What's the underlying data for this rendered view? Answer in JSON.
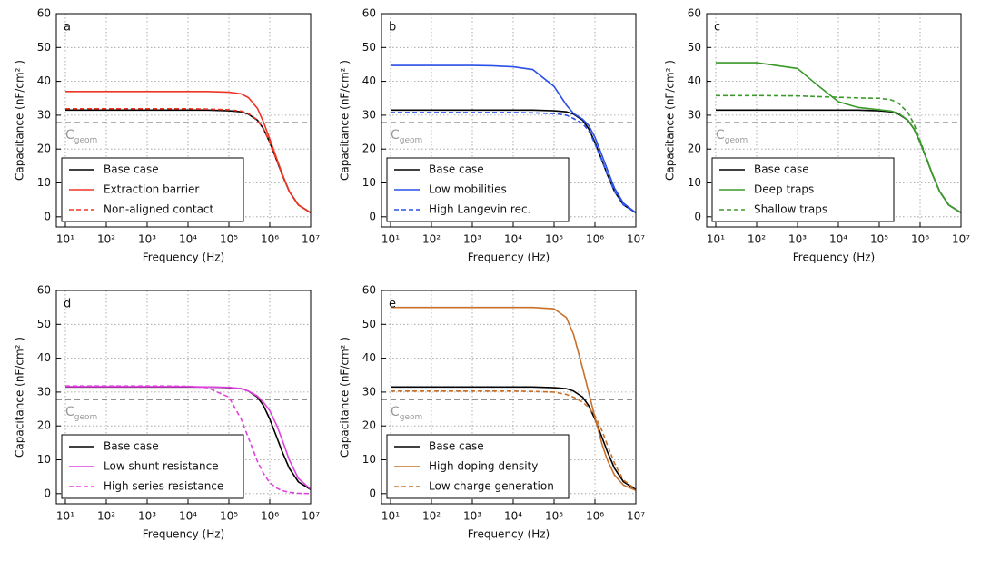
{
  "chart_data": [
    {
      "type": "line",
      "panel_label": "a",
      "xlabel": "Frequency (Hz)",
      "ylabel": "Capacitance (nF/cm² )",
      "log_x": true,
      "grid": true,
      "legend": "lower left",
      "x": [
        10,
        100,
        1000,
        3000,
        10000,
        30000,
        100000,
        200000,
        300000,
        500000,
        700000,
        1000000,
        1500000,
        2000000,
        3000000,
        5000000,
        10000000
      ],
      "xlim": [
        6,
        10000000
      ],
      "ylim": [
        -3,
        60
      ],
      "xticks": [
        {
          "value": 10,
          "label": "10¹"
        },
        {
          "value": 100,
          "label": "10²"
        },
        {
          "value": 1000,
          "label": "10³"
        },
        {
          "value": 10000,
          "label": "10⁴"
        },
        {
          "value": 100000,
          "label": "10⁵"
        },
        {
          "value": 1000000,
          "label": "10⁶"
        },
        {
          "value": 10000000,
          "label": "10⁷"
        }
      ],
      "yticks": [
        0,
        10,
        20,
        30,
        40,
        50,
        60
      ],
      "reference_line": {
        "value": 27.8,
        "color": "#808080"
      },
      "annotation": {
        "text": "C",
        "subscript": "geom"
      },
      "series": [
        {
          "name": "Base case",
          "color": "#000000",
          "dash": false,
          "values": [
            31.5,
            31.5,
            31.5,
            31.5,
            31.5,
            31.5,
            31.3,
            31,
            30.3,
            28.5,
            26,
            22,
            16.5,
            12.5,
            7.5,
            3.5,
            1.2
          ]
        },
        {
          "name": "Extraction barrier",
          "color": "#ee3524",
          "dash": false,
          "values": [
            37,
            37,
            37,
            37,
            37,
            37,
            36.8,
            36.3,
            35.2,
            32,
            28,
            23,
            17,
            12.8,
            7.5,
            3.5,
            1.2
          ]
        },
        {
          "name": "Non-aligned contact",
          "color": "#ee3524",
          "dash": true,
          "values": [
            31.9,
            31.9,
            31.9,
            31.9,
            31.9,
            31.8,
            31.6,
            31.2,
            30.5,
            28.6,
            26,
            22,
            16.5,
            12.5,
            7.5,
            3.5,
            1.2
          ]
        }
      ]
    },
    {
      "type": "line",
      "panel_label": "b",
      "xlabel": "Frequency (Hz)",
      "ylabel": "Capacitance (nF/cm² )",
      "log_x": true,
      "grid": true,
      "legend": "lower left",
      "x": [
        10,
        100,
        1000,
        3000,
        10000,
        30000,
        100000,
        200000,
        300000,
        500000,
        700000,
        1000000,
        1500000,
        2000000,
        3000000,
        5000000,
        10000000
      ],
      "xlim": [
        6,
        10000000
      ],
      "ylim": [
        -3,
        60
      ],
      "xticks": [
        {
          "value": 10,
          "label": "10¹"
        },
        {
          "value": 100,
          "label": "10²"
        },
        {
          "value": 1000,
          "label": "10³"
        },
        {
          "value": 10000,
          "label": "10⁴"
        },
        {
          "value": 100000,
          "label": "10⁵"
        },
        {
          "value": 1000000,
          "label": "10⁶"
        },
        {
          "value": 10000000,
          "label": "10⁷"
        }
      ],
      "yticks": [
        0,
        10,
        20,
        30,
        40,
        50,
        60
      ],
      "reference_line": {
        "value": 27.8,
        "color": "#808080"
      },
      "annotation": {
        "text": "C",
        "subscript": "geom"
      },
      "series": [
        {
          "name": "Base case",
          "color": "#000000",
          "dash": false,
          "values": [
            31.5,
            31.5,
            31.5,
            31.5,
            31.5,
            31.5,
            31.3,
            31,
            30.3,
            28.5,
            26,
            22,
            16.5,
            12.5,
            7.5,
            3.5,
            1.2
          ]
        },
        {
          "name": "Low mobilities",
          "color": "#2a50e8",
          "dash": false,
          "values": [
            44.7,
            44.7,
            44.7,
            44.6,
            44.3,
            43.5,
            38.5,
            33,
            30.5,
            28.8,
            27,
            23.5,
            18,
            14,
            8.5,
            4,
            1.2
          ]
        },
        {
          "name": "High Langevin rec.",
          "color": "#2a50e8",
          "dash": true,
          "values": [
            30.8,
            30.8,
            30.8,
            30.8,
            30.8,
            30.7,
            30.5,
            30,
            29,
            27.5,
            25.5,
            21.5,
            16.5,
            12.5,
            7.5,
            3.5,
            1.2
          ]
        }
      ]
    },
    {
      "type": "line",
      "panel_label": "c",
      "xlabel": "Frequency (Hz)",
      "ylabel": "Capacitance (nF/cm² )",
      "log_x": true,
      "grid": true,
      "legend": "lower left",
      "x": [
        10,
        100,
        1000,
        3000,
        10000,
        30000,
        100000,
        200000,
        300000,
        500000,
        700000,
        1000000,
        1500000,
        2000000,
        3000000,
        5000000,
        10000000
      ],
      "xlim": [
        6,
        10000000
      ],
      "ylim": [
        -3,
        60
      ],
      "xticks": [
        {
          "value": 10,
          "label": "10¹"
        },
        {
          "value": 100,
          "label": "10²"
        },
        {
          "value": 1000,
          "label": "10³"
        },
        {
          "value": 10000,
          "label": "10⁴"
        },
        {
          "value": 100000,
          "label": "10⁵"
        },
        {
          "value": 1000000,
          "label": "10⁶"
        },
        {
          "value": 10000000,
          "label": "10⁷"
        }
      ],
      "yticks": [
        0,
        10,
        20,
        30,
        40,
        50,
        60
      ],
      "reference_line": {
        "value": 27.8,
        "color": "#808080"
      },
      "annotation": {
        "text": "C",
        "subscript": "geom"
      },
      "series": [
        {
          "name": "Base case",
          "color": "#000000",
          "dash": false,
          "values": [
            31.5,
            31.5,
            31.5,
            31.5,
            31.5,
            31.5,
            31.3,
            31,
            30.3,
            28.5,
            26,
            22,
            16.5,
            12.5,
            7.5,
            3.5,
            1.2
          ]
        },
        {
          "name": "Deep traps",
          "color": "#3a9a2a",
          "dash": false,
          "values": [
            45.5,
            45.5,
            43.8,
            39,
            34,
            32.3,
            31.6,
            31.2,
            30.5,
            28.5,
            26,
            22,
            16.5,
            12.5,
            7.5,
            3.5,
            1.2
          ]
        },
        {
          "name": "Shallow traps",
          "color": "#3a9a2a",
          "dash": true,
          "values": [
            35.8,
            35.8,
            35.7,
            35.5,
            35.3,
            35.1,
            35,
            34.5,
            33.5,
            30.8,
            27.5,
            22.5,
            16.8,
            12.5,
            7.5,
            3.5,
            1.2
          ]
        }
      ]
    },
    {
      "type": "line",
      "panel_label": "d",
      "xlabel": "Frequency (Hz)",
      "ylabel": "Capacitance (nF/cm² )",
      "log_x": true,
      "grid": true,
      "legend": "lower left",
      "x": [
        10,
        100,
        1000,
        3000,
        10000,
        30000,
        100000,
        200000,
        300000,
        500000,
        700000,
        1000000,
        1500000,
        2000000,
        3000000,
        5000000,
        10000000
      ],
      "xlim": [
        6,
        10000000
      ],
      "ylim": [
        -3,
        60
      ],
      "xticks": [
        {
          "value": 10,
          "label": "10¹"
        },
        {
          "value": 100,
          "label": "10²"
        },
        {
          "value": 1000,
          "label": "10³"
        },
        {
          "value": 10000,
          "label": "10⁴"
        },
        {
          "value": 100000,
          "label": "10⁵"
        },
        {
          "value": 1000000,
          "label": "10⁶"
        },
        {
          "value": 10000000,
          "label": "10⁷"
        }
      ],
      "yticks": [
        0,
        10,
        20,
        30,
        40,
        50,
        60
      ],
      "reference_line": {
        "value": 27.8,
        "color": "#808080"
      },
      "annotation": {
        "text": "C",
        "subscript": "geom"
      },
      "series": [
        {
          "name": "Base case",
          "color": "#000000",
          "dash": false,
          "values": [
            31.5,
            31.5,
            31.5,
            31.5,
            31.5,
            31.5,
            31.3,
            31,
            30.3,
            28.5,
            26,
            22,
            16.5,
            12.5,
            7.5,
            3.5,
            1.2
          ]
        },
        {
          "name": "Low shunt resistance",
          "color": "#e040e0",
          "dash": false,
          "values": [
            31.6,
            31.6,
            31.6,
            31.6,
            31.6,
            31.5,
            31.4,
            31,
            30.3,
            28.8,
            27,
            24.5,
            20,
            16,
            10,
            4.5,
            1.3
          ]
        },
        {
          "name": "High series resistance",
          "color": "#e040e0",
          "dash": true,
          "values": [
            31.8,
            31.8,
            31.8,
            31.8,
            31.7,
            31.3,
            28.5,
            22,
            16.5,
            9.5,
            6,
            3.2,
            1.6,
            0.9,
            0.4,
            0.1,
            0
          ]
        }
      ]
    },
    {
      "type": "line",
      "panel_label": "e",
      "xlabel": "Frequency (Hz)",
      "ylabel": "Capacitance (nF/cm² )",
      "log_x": true,
      "grid": true,
      "legend": "lower left",
      "x": [
        10,
        100,
        1000,
        3000,
        10000,
        30000,
        100000,
        200000,
        300000,
        500000,
        700000,
        1000000,
        1500000,
        2000000,
        3000000,
        5000000,
        10000000
      ],
      "xlim": [
        6,
        10000000
      ],
      "ylim": [
        -3,
        60
      ],
      "xticks": [
        {
          "value": 10,
          "label": "10¹"
        },
        {
          "value": 100,
          "label": "10²"
        },
        {
          "value": 1000,
          "label": "10³"
        },
        {
          "value": 10000,
          "label": "10⁴"
        },
        {
          "value": 100000,
          "label": "10⁵"
        },
        {
          "value": 1000000,
          "label": "10⁶"
        },
        {
          "value": 10000000,
          "label": "10⁷"
        }
      ],
      "yticks": [
        0,
        10,
        20,
        30,
        40,
        50,
        60
      ],
      "reference_line": {
        "value": 27.8,
        "color": "#808080"
      },
      "annotation": {
        "text": "C",
        "subscript": "geom"
      },
      "series": [
        {
          "name": "Base case",
          "color": "#000000",
          "dash": false,
          "values": [
            31.5,
            31.5,
            31.5,
            31.5,
            31.5,
            31.5,
            31.3,
            31,
            30.3,
            28.5,
            26,
            22,
            16.5,
            12.5,
            7.5,
            3.5,
            1.2
          ]
        },
        {
          "name": "High doping density",
          "color": "#c8702a",
          "dash": false,
          "values": [
            55,
            55,
            55,
            55,
            55,
            55,
            54.6,
            52,
            47,
            37,
            30,
            22.5,
            14.5,
            10,
            5.5,
            2.5,
            1
          ]
        },
        {
          "name": "Low charge generation",
          "color": "#c8702a",
          "dash": true,
          "values": [
            30.3,
            30.3,
            30.3,
            30.3,
            30.3,
            30.2,
            30,
            29.3,
            28.5,
            27,
            25.5,
            23,
            18.5,
            14.5,
            9,
            4,
            1.3
          ]
        }
      ]
    }
  ]
}
